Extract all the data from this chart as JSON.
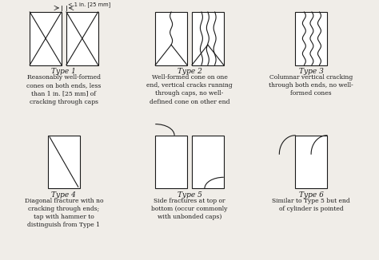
{
  "background_color": "#f0ede8",
  "line_color": "#1a1a1a",
  "title_fontsize": 6.5,
  "desc_fontsize": 5.5,
  "types": [
    {
      "id": 1,
      "title": "Type 1",
      "description": "Reasonably well-formed\ncones on both ends, less\nthan 1 in. [25 mm] of\ncracking through caps",
      "col": 0,
      "row": 0
    },
    {
      "id": 2,
      "title": "Type 2",
      "description": "Well-formed cone on one\nend, vertical cracks running\nthrough caps, no well-\ndefined cone on other end",
      "col": 1,
      "row": 0
    },
    {
      "id": 3,
      "title": "Type 3",
      "description": "Columnar vertical cracking\nthrough both ends, no well-\nformed cones",
      "col": 2,
      "row": 0
    },
    {
      "id": 4,
      "title": "Type 4",
      "description": "Diagonal fracture with no\ncracking through ends;\ntap with hammer to\ndistinguish from Type 1",
      "col": 0,
      "row": 1
    },
    {
      "id": 5,
      "title": "Type 5",
      "description": "Side fractures at top or\nbottom (occur commonly\nwith unbonded caps)",
      "col": 1,
      "row": 1
    },
    {
      "id": 6,
      "title": "Type 6",
      "description": "Similar to Type 5 but end\nof cylinder is pointed",
      "col": 2,
      "row": 1
    }
  ]
}
